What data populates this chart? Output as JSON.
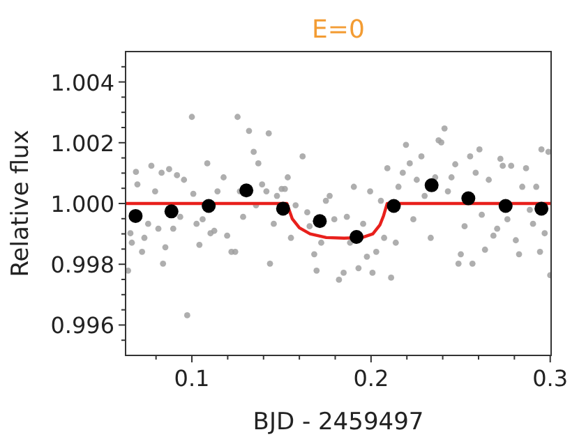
{
  "chart_data": {
    "type": "scatter",
    "title": "E=0",
    "xlabel": "BJD - 2459497",
    "ylabel": "Relative flux",
    "xlim": [
      0.063,
      0.3005
    ],
    "ylim": [
      0.995,
      1.005
    ],
    "xticks": [
      {
        "value": 0.08,
        "label": null
      },
      0.1,
      {
        "value": 0.12,
        "label": null
      },
      {
        "value": 0.14,
        "label": null
      },
      {
        "value": 0.16,
        "label": null
      },
      {
        "value": 0.18,
        "label": null
      },
      0.2,
      {
        "value": 0.22,
        "label": null
      },
      {
        "value": 0.24,
        "label": null
      },
      {
        "value": 0.26,
        "label": null
      },
      {
        "value": 0.28,
        "label": null
      },
      0.3
    ],
    "yticks": [
      {
        "value": 0.9955,
        "label": null
      },
      {
        "value": 0.996,
        "label": "0.996"
      },
      {
        "value": 0.9965,
        "label": null
      },
      {
        "value": 0.997,
        "label": null
      },
      {
        "value": 0.9975,
        "label": null
      },
      {
        "value": 0.998,
        "label": "0.998"
      },
      {
        "value": 0.9985,
        "label": null
      },
      {
        "value": 0.999,
        "label": null
      },
      {
        "value": 0.9995,
        "label": null
      },
      {
        "value": 1,
        "label": "1.000"
      },
      {
        "value": 1.0005,
        "label": null
      },
      {
        "value": 1.001,
        "label": null
      },
      {
        "value": 1.0015,
        "label": null
      },
      {
        "value": 1.002,
        "label": "1.002"
      },
      {
        "value": 1.0025,
        "label": null
      },
      {
        "value": 1.003,
        "label": null
      },
      {
        "value": 1.0035,
        "label": null
      },
      {
        "value": 1.004,
        "label": "1.004"
      },
      {
        "value": 1.0045,
        "label": null
      }
    ],
    "grid": false,
    "marker": "circle",
    "series": [
      {
        "color": "#a0a0a0",
        "x": [
          0.0644,
          0.0657,
          0.0665,
          0.0688,
          0.0696,
          0.0722,
          0.0735,
          0.0756,
          0.0774,
          0.0795,
          0.0813,
          0.0831,
          0.0839,
          0.0852,
          0.0873,
          0.0896,
          0.0917,
          0.0935,
          0.0956,
          0.0974,
          0.1,
          0.1008,
          0.1026,
          0.1042,
          0.106,
          0.1086,
          0.1104,
          0.1125,
          0.1143,
          0.1177,
          0.1197,
          0.1221,
          0.1242,
          0.1255,
          0.1268,
          0.1286,
          0.1319,
          0.1345,
          0.1358,
          0.1371,
          0.1392,
          0.1416,
          0.1429,
          0.1436,
          0.1457,
          0.1475,
          0.1501,
          0.1519,
          0.1535,
          0.1553,
          0.1579,
          0.1618,
          0.1644,
          0.1657,
          0.1683,
          0.1696,
          0.1722,
          0.1748,
          0.1769,
          0.1795,
          0.1821,
          0.1847,
          0.1865,
          0.1883,
          0.1904,
          0.193,
          0.1956,
          0.1977,
          0.1995,
          0.2008,
          0.2029,
          0.2055,
          0.2073,
          0.2091,
          0.2112,
          0.2138,
          0.2153,
          0.2177,
          0.2195,
          0.2216,
          0.2236,
          0.2255,
          0.2281,
          0.2299,
          0.2333,
          0.2358,
          0.2377,
          0.2392,
          0.241,
          0.2429,
          0.2449,
          0.247,
          0.2488,
          0.2501,
          0.2522,
          0.2553,
          0.2566,
          0.2584,
          0.2605,
          0.2618,
          0.2636,
          0.2657,
          0.2683,
          0.2704,
          0.2722,
          0.2735,
          0.2761,
          0.2782,
          0.2808,
          0.2826,
          0.2844,
          0.2865,
          0.2886,
          0.2904,
          0.2922,
          0.2943,
          0.2951,
          0.2969,
          0.299,
          0.3
        ],
        "values": [
          0.99779,
          0.99902,
          0.99871,
          1.00104,
          1.00063,
          0.99841,
          0.99887,
          0.99933,
          1.00124,
          1.0004,
          0.99917,
          1.00101,
          0.99802,
          0.99856,
          1.00113,
          0.99917,
          1.00093,
          0.99956,
          1.00078,
          0.99632,
          1.00285,
          1.00032,
          0.99933,
          0.99864,
          0.99948,
          1.00132,
          0.99902,
          0.9991,
          1.0004,
          1.00086,
          0.99894,
          0.99841,
          0.99841,
          1.00285,
          1.0004,
          0.99956,
          1.00239,
          1.0017,
          0.99994,
          1.00132,
          1.00063,
          1.0004,
          1.00231,
          0.99802,
          0.99933,
          1.00025,
          1.00048,
          1.00048,
          1.00086,
          0.99887,
          0.99994,
          1.00155,
          0.99971,
          0.99925,
          0.99833,
          0.99779,
          0.99871,
          1.00009,
          1.00025,
          0.99948,
          0.99749,
          0.99772,
          0.99956,
          0.99871,
          1.00055,
          0.99787,
          0.99933,
          0.99825,
          1.0004,
          0.99772,
          0.99841,
          1.00009,
          0.99887,
          1.00116,
          0.99756,
          0.99871,
          1.00055,
          1.00101,
          1.00193,
          1.00132,
          0.99948,
          1.00078,
          1.00155,
          1.00025,
          0.99887,
          1.00086,
          1.00208,
          1.00201,
          1.00247,
          1.0004,
          1.00086,
          1.00129,
          0.99802,
          0.99833,
          0.99925,
          1.00155,
          0.99802,
          1.00101,
          1.00178,
          0.99963,
          0.99848,
          1.00078,
          0.99894,
          0.99917,
          1.00147,
          1.00124,
          0.99948,
          1.00124,
          0.99879,
          0.99833,
          1.00055,
          1.00116,
          0.99979,
          0.99933,
          1.00055,
          0.99841,
          1.00178,
          0.99902,
          1.0017,
          0.99764
        ]
      },
      {
        "type": "line",
        "color": "#e8201c",
        "marker": "none",
        "x": [
          0.063,
          0.153,
          0.156,
          0.16,
          0.166,
          0.175,
          0.185,
          0.195,
          0.201,
          0.205,
          0.207,
          0.209,
          0.3005
        ],
        "values": [
          1,
          1,
          0.9995,
          0.9992,
          0.999,
          0.99888,
          0.99886,
          0.99888,
          0.999,
          0.9993,
          0.9996,
          1,
          1
        ]
      },
      {
        "type": "scatter",
        "color": "#000000",
        "x": [
          0.0686,
          0.0886,
          0.1094,
          0.1304,
          0.1509,
          0.1714,
          0.1919,
          0.2127,
          0.2338,
          0.2543,
          0.2751,
          0.2951
        ],
        "values": [
          0.99959,
          0.99974,
          0.99992,
          1.00043,
          0.99983,
          0.99942,
          0.9989,
          0.99992,
          1.0006,
          1.00017,
          0.99992,
          0.99983
        ]
      }
    ]
  }
}
